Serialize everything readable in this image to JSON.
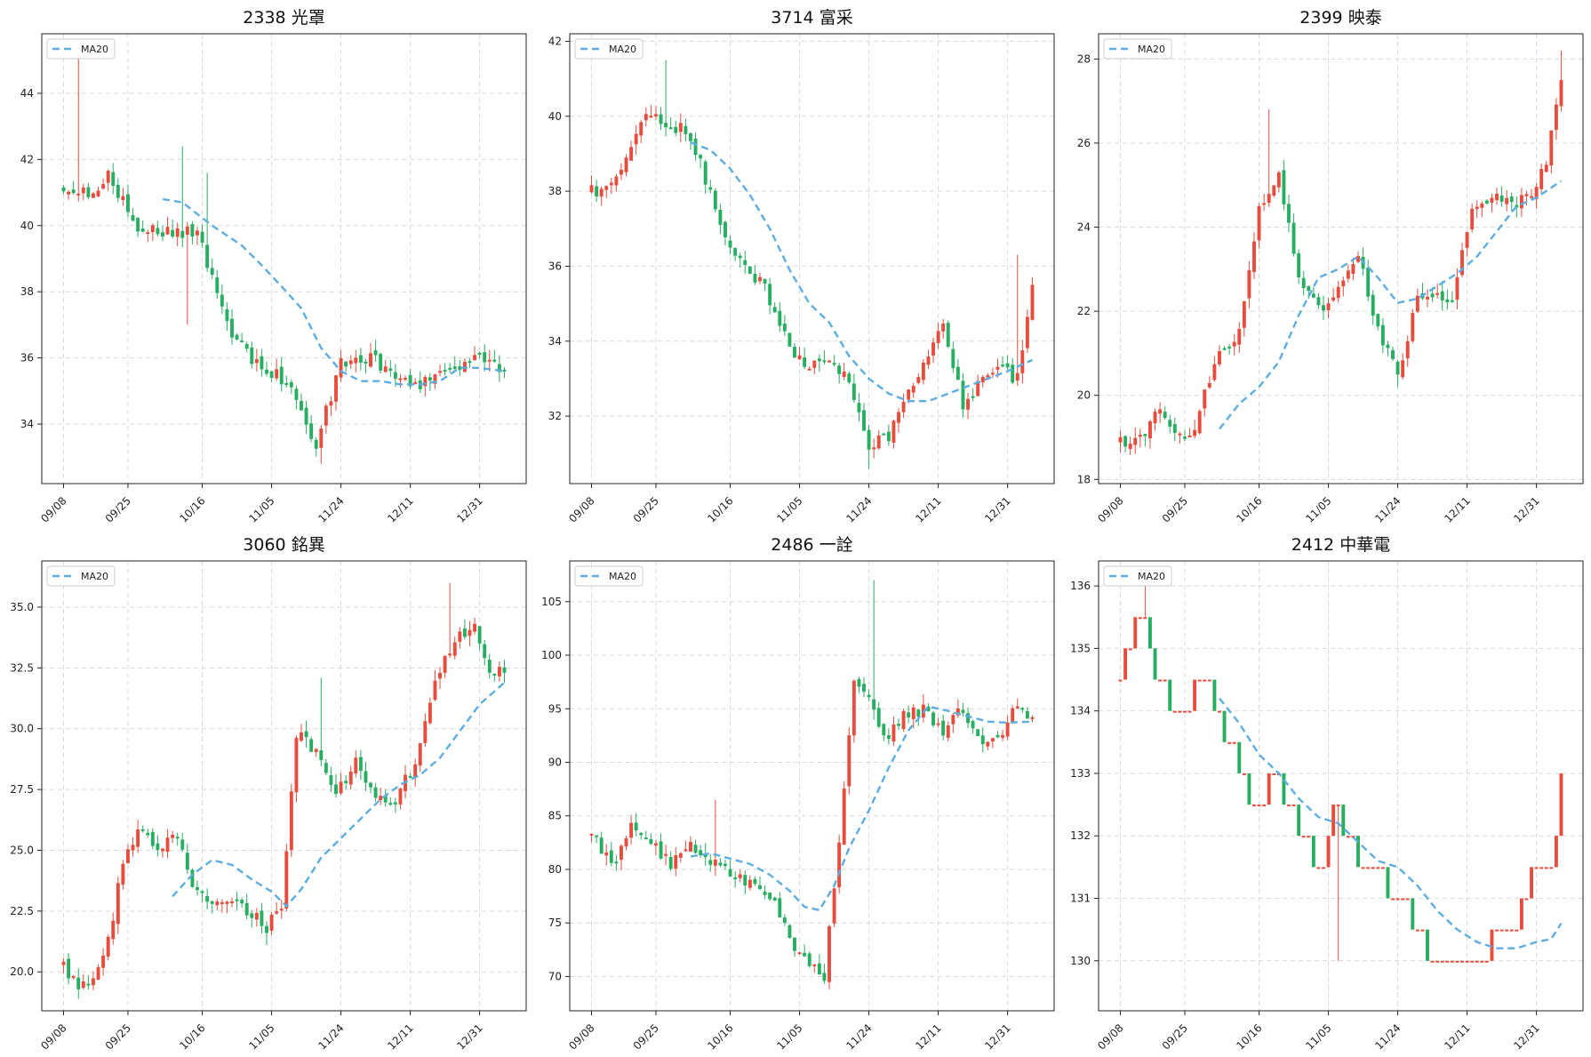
{
  "colors": {
    "up": "#e74c3c",
    "down": "#27ae60",
    "ma": "#5dade2",
    "grid": "#d9d9d9"
  },
  "chart_data": [
    {
      "type": "candlestick",
      "title": "2338 光罩",
      "legend": {
        "label": "MA20",
        "placement": "top-left"
      },
      "grid": true,
      "ylim": [
        32.2,
        45.8
      ],
      "yticks": [
        34,
        36,
        38,
        40,
        42,
        44
      ],
      "xticks": [
        "09/08",
        "09/25",
        "10/16",
        "11/05",
        "11/24",
        "12/11",
        "12/31"
      ],
      "close_start": 41.2,
      "close_end": 35.6,
      "anchors": [
        [
          0,
          41.2
        ],
        [
          5,
          41.0
        ],
        [
          9,
          41.5
        ],
        [
          15,
          40.0
        ],
        [
          20,
          39.8
        ],
        [
          27,
          39.8
        ],
        [
          33,
          37.0
        ],
        [
          39,
          35.8
        ],
        [
          45,
          35.3
        ],
        [
          51,
          33.4
        ],
        [
          56,
          35.8
        ],
        [
          62,
          36.0
        ],
        [
          67,
          35.5
        ],
        [
          72,
          35.2
        ],
        [
          77,
          35.5
        ],
        [
          83,
          36.1
        ],
        [
          89,
          35.6
        ]
      ],
      "hi_spike": {
        "3": 45.2,
        "29": 41.6,
        "24": 42.4
      },
      "lo_spike": {
        "25": 37.0,
        "52": 32.8
      },
      "ma_start": 20,
      "ma_points": [
        [
          20,
          40.8
        ],
        [
          24,
          40.7
        ],
        [
          30,
          40.0
        ],
        [
          36,
          39.4
        ],
        [
          40,
          38.8
        ],
        [
          45,
          38.0
        ],
        [
          48,
          37.5
        ],
        [
          52,
          36.3
        ],
        [
          56,
          35.6
        ],
        [
          60,
          35.3
        ],
        [
          64,
          35.3
        ],
        [
          68,
          35.2
        ],
        [
          72,
          35.2
        ],
        [
          76,
          35.3
        ],
        [
          80,
          35.7
        ],
        [
          84,
          35.7
        ],
        [
          89,
          35.6
        ]
      ]
    },
    {
      "type": "candlestick",
      "title": "3714 富采",
      "legend": {
        "label": "MA20",
        "placement": "top-left"
      },
      "grid": true,
      "ylim": [
        30.2,
        42.2
      ],
      "yticks": [
        32,
        34,
        36,
        38,
        40,
        42
      ],
      "xticks": [
        "09/08",
        "09/25",
        "10/16",
        "11/05",
        "11/24",
        "12/11",
        "12/31"
      ],
      "close_start": 38.0,
      "close_end": 35.5,
      "anchors": [
        [
          0,
          38.0
        ],
        [
          3,
          38.0
        ],
        [
          6,
          38.4
        ],
        [
          9,
          39.5
        ],
        [
          12,
          40.1
        ],
        [
          15,
          39.8
        ],
        [
          19,
          39.6
        ],
        [
          22,
          38.8
        ],
        [
          26,
          37.0
        ],
        [
          30,
          36.2
        ],
        [
          35,
          35.4
        ],
        [
          40,
          33.8
        ],
        [
          44,
          33.3
        ],
        [
          48,
          33.5
        ],
        [
          52,
          33.0
        ],
        [
          56,
          31.2
        ],
        [
          60,
          31.5
        ],
        [
          64,
          32.6
        ],
        [
          67,
          33.3
        ],
        [
          71,
          34.5
        ],
        [
          75,
          32.3
        ],
        [
          79,
          33.0
        ],
        [
          83,
          33.2
        ],
        [
          86,
          33.0
        ],
        [
          89,
          35.5
        ]
      ],
      "hi_spike": {
        "15": 41.5,
        "86": 36.3
      },
      "lo_spike": {
        "56": 30.6
      },
      "ma_start": 20,
      "ma_points": [
        [
          20,
          39.3
        ],
        [
          24,
          39.1
        ],
        [
          28,
          38.6
        ],
        [
          32,
          37.9
        ],
        [
          36,
          37.0
        ],
        [
          40,
          35.9
        ],
        [
          44,
          35.0
        ],
        [
          48,
          34.5
        ],
        [
          52,
          33.6
        ],
        [
          56,
          33.0
        ],
        [
          60,
          32.6
        ],
        [
          64,
          32.4
        ],
        [
          68,
          32.4
        ],
        [
          72,
          32.6
        ],
        [
          76,
          32.8
        ],
        [
          80,
          33.0
        ],
        [
          84,
          33.2
        ],
        [
          89,
          33.5
        ]
      ]
    },
    {
      "type": "candlestick",
      "title": "2399 映泰",
      "legend": {
        "label": "MA20",
        "placement": "top-left"
      },
      "grid": true,
      "ylim": [
        17.9,
        28.6
      ],
      "yticks": [
        18,
        20,
        22,
        24,
        26,
        28
      ],
      "xticks": [
        "09/08",
        "09/25",
        "10/16",
        "11/05",
        "11/24",
        "12/11",
        "12/31"
      ],
      "close_start": 18.9,
      "close_end": 27.5,
      "anchors": [
        [
          0,
          18.9
        ],
        [
          5,
          19.0
        ],
        [
          8,
          19.8
        ],
        [
          11,
          19.0
        ],
        [
          15,
          19.2
        ],
        [
          19,
          20.8
        ],
        [
          24,
          21.5
        ],
        [
          28,
          24.5
        ],
        [
          32,
          25.2
        ],
        [
          36,
          22.8
        ],
        [
          40,
          22.0
        ],
        [
          44,
          22.5
        ],
        [
          48,
          23.4
        ],
        [
          52,
          21.5
        ],
        [
          56,
          20.5
        ],
        [
          60,
          22.3
        ],
        [
          64,
          22.4
        ],
        [
          67,
          22.2
        ],
        [
          71,
          24.5
        ],
        [
          75,
          24.7
        ],
        [
          79,
          24.5
        ],
        [
          83,
          24.8
        ],
        [
          86,
          25.6
        ],
        [
          89,
          27.5
        ]
      ],
      "hi_spike": {
        "30": 26.8,
        "89": 28.2
      },
      "lo_spike": {
        "56": 20.2
      },
      "ma_start": 20,
      "ma_points": [
        [
          20,
          19.2
        ],
        [
          24,
          19.8
        ],
        [
          28,
          20.2
        ],
        [
          32,
          20.8
        ],
        [
          36,
          21.9
        ],
        [
          40,
          22.8
        ],
        [
          44,
          23.0
        ],
        [
          48,
          23.3
        ],
        [
          52,
          22.8
        ],
        [
          56,
          22.2
        ],
        [
          60,
          22.3
        ],
        [
          64,
          22.6
        ],
        [
          68,
          22.9
        ],
        [
          72,
          23.3
        ],
        [
          76,
          23.9
        ],
        [
          80,
          24.5
        ],
        [
          84,
          24.7
        ],
        [
          89,
          25.1
        ]
      ]
    },
    {
      "type": "candlestick",
      "title": "3060 銘異",
      "legend": {
        "label": "MA20",
        "placement": "top-left"
      },
      "grid": true,
      "ylim": [
        18.4,
        36.9
      ],
      "yticks": [
        20.0,
        22.5,
        25.0,
        27.5,
        30.0,
        32.5,
        35.0
      ],
      "ytick_labels": [
        "20.0",
        "22.5",
        "25.0",
        "27.5",
        "30.0",
        "32.5",
        "35.0"
      ],
      "xticks": [
        "09/08",
        "09/25",
        "10/16",
        "11/05",
        "11/24",
        "12/11",
        "12/31"
      ],
      "close_start": 20.3,
      "close_end": 32.3,
      "anchors": [
        [
          0,
          20.3
        ],
        [
          3,
          19.4
        ],
        [
          6,
          19.6
        ],
        [
          9,
          21.2
        ],
        [
          12,
          24.7
        ],
        [
          15,
          25.8
        ],
        [
          19,
          25.1
        ],
        [
          23,
          25.6
        ],
        [
          27,
          23.1
        ],
        [
          31,
          23.0
        ],
        [
          35,
          22.7
        ],
        [
          38,
          22.4
        ],
        [
          41,
          21.8
        ],
        [
          44,
          22.8
        ],
        [
          47,
          29.8
        ],
        [
          51,
          29.0
        ],
        [
          55,
          27.4
        ],
        [
          59,
          28.6
        ],
        [
          63,
          27.4
        ],
        [
          67,
          27.0
        ],
        [
          71,
          28.7
        ],
        [
          75,
          31.8
        ],
        [
          79,
          33.8
        ],
        [
          83,
          34.2
        ],
        [
          86,
          32.4
        ],
        [
          89,
          32.3
        ]
      ],
      "hi_spike": {
        "78": 36.0,
        "52": 32.1
      },
      "lo_spike": {
        "41": 21.1
      },
      "ma_start": 22,
      "ma_points": [
        [
          22,
          23.1
        ],
        [
          26,
          24.0
        ],
        [
          30,
          24.6
        ],
        [
          34,
          24.4
        ],
        [
          38,
          23.8
        ],
        [
          42,
          23.3
        ],
        [
          45,
          22.7
        ],
        [
          48,
          23.4
        ],
        [
          52,
          24.7
        ],
        [
          56,
          25.5
        ],
        [
          60,
          26.3
        ],
        [
          64,
          27.1
        ],
        [
          68,
          27.7
        ],
        [
          72,
          28.1
        ],
        [
          76,
          28.8
        ],
        [
          80,
          29.9
        ],
        [
          84,
          31.0
        ],
        [
          89,
          31.9
        ]
      ]
    },
    {
      "type": "candlestick",
      "title": "2486 一詮",
      "legend": {
        "label": "MA20",
        "placement": "top-left"
      },
      "grid": true,
      "ylim": [
        66.8,
        108.8
      ],
      "yticks": [
        70,
        75,
        80,
        85,
        90,
        95,
        100,
        105
      ],
      "xticks": [
        "09/08",
        "09/25",
        "10/16",
        "11/05",
        "11/24",
        "12/11",
        "12/31"
      ],
      "close_start": 83.2,
      "close_end": 94.2,
      "anchors": [
        [
          0,
          83.2
        ],
        [
          4,
          80.3
        ],
        [
          8,
          83.8
        ],
        [
          12,
          82.5
        ],
        [
          16,
          80.6
        ],
        [
          20,
          82.5
        ],
        [
          24,
          80.5
        ],
        [
          28,
          79.8
        ],
        [
          32,
          78.5
        ],
        [
          36,
          77.5
        ],
        [
          40,
          73.5
        ],
        [
          44,
          71.0
        ],
        [
          47,
          70.2
        ],
        [
          50,
          82.8
        ],
        [
          53,
          97.5
        ],
        [
          56,
          95.5
        ],
        [
          59,
          92.0
        ],
        [
          63,
          94.5
        ],
        [
          67,
          94.8
        ],
        [
          71,
          93.0
        ],
        [
          75,
          95.0
        ],
        [
          79,
          92.0
        ],
        [
          83,
          93.0
        ],
        [
          86,
          95.2
        ],
        [
          89,
          94.2
        ]
      ],
      "hi_spike": {
        "57": 107.0,
        "25": 86.5
      },
      "lo_spike": {
        "48": 68.8
      },
      "ma_start": 20,
      "ma_points": [
        [
          20,
          81.2
        ],
        [
          24,
          81.5
        ],
        [
          28,
          81.0
        ],
        [
          32,
          80.5
        ],
        [
          36,
          79.5
        ],
        [
          40,
          78.0
        ],
        [
          43,
          76.5
        ],
        [
          46,
          76.2
        ],
        [
          49,
          78.5
        ],
        [
          52,
          82.0
        ],
        [
          56,
          85.5
        ],
        [
          60,
          89.5
        ],
        [
          64,
          93.0
        ],
        [
          68,
          95.2
        ],
        [
          72,
          94.8
        ],
        [
          76,
          94.3
        ],
        [
          80,
          93.8
        ],
        [
          84,
          93.7
        ],
        [
          89,
          93.8
        ]
      ]
    },
    {
      "type": "candlestick",
      "title": "2412 中華電",
      "legend": {
        "label": "MA20",
        "placement": "top-left"
      },
      "grid": true,
      "ylim": [
        129.2,
        136.4
      ],
      "yticks": [
        130,
        131,
        132,
        133,
        134,
        135,
        136
      ],
      "xticks": [
        "09/08",
        "09/25",
        "10/16",
        "11/05",
        "11/24",
        "12/11",
        "12/31"
      ],
      "tick_step": 0.5,
      "close_start": 134.5,
      "close_end": 133.0,
      "anchors": [
        [
          0,
          134.5
        ],
        [
          4,
          135.5
        ],
        [
          8,
          134.5
        ],
        [
          12,
          134.0
        ],
        [
          16,
          134.5
        ],
        [
          20,
          134.0
        ],
        [
          24,
          133.0
        ],
        [
          28,
          132.5
        ],
        [
          32,
          133.0
        ],
        [
          36,
          132.0
        ],
        [
          40,
          131.5
        ],
        [
          44,
          132.5
        ],
        [
          48,
          131.5
        ],
        [
          52,
          131.5
        ],
        [
          56,
          131.0
        ],
        [
          60,
          130.5
        ],
        [
          64,
          129.8
        ],
        [
          68,
          130.0
        ],
        [
          72,
          129.8
        ],
        [
          76,
          130.5
        ],
        [
          80,
          130.5
        ],
        [
          84,
          131.5
        ],
        [
          87,
          131.5
        ],
        [
          89,
          133.0
        ]
      ],
      "hi_spike": {
        "5": 136.0
      },
      "lo_spike": {
        "44": 130.0
      },
      "ma_start": 20,
      "ma_points": [
        [
          20,
          134.2
        ],
        [
          24,
          133.8
        ],
        [
          28,
          133.3
        ],
        [
          32,
          133.0
        ],
        [
          36,
          132.6
        ],
        [
          40,
          132.3
        ],
        [
          44,
          132.2
        ],
        [
          48,
          131.9
        ],
        [
          52,
          131.6
        ],
        [
          56,
          131.5
        ],
        [
          60,
          131.2
        ],
        [
          64,
          130.8
        ],
        [
          68,
          130.5
        ],
        [
          72,
          130.3
        ],
        [
          76,
          130.2
        ],
        [
          80,
          130.2
        ],
        [
          84,
          130.3
        ],
        [
          87,
          130.35
        ],
        [
          89,
          130.6
        ]
      ]
    }
  ]
}
